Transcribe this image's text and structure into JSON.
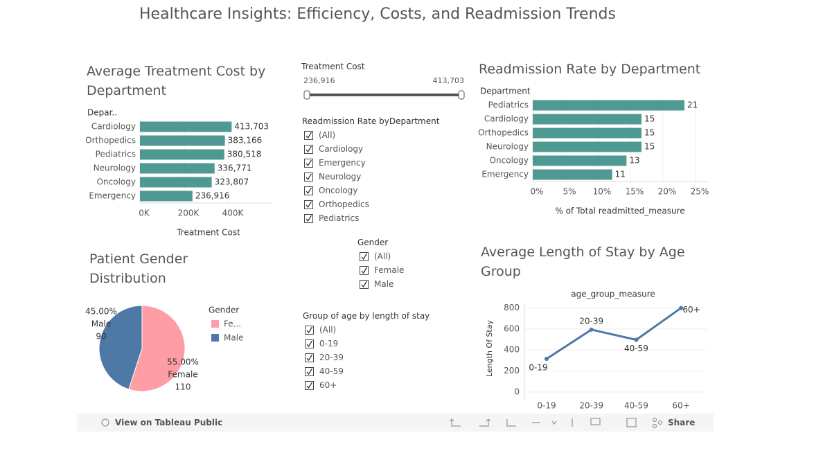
{
  "title": "Healthcare Insights: Efficiency, Costs, and Readmission Trends",
  "chart_data": [
    {
      "type": "hbar",
      "title": "Average Treatment Cost by Department",
      "category_header": "Depar..",
      "xlabel": "Treatment Cost",
      "categories": [
        "Cardiology",
        "Orthopedics",
        "Pediatrics",
        "Neurology",
        "Oncology",
        "Emergency"
      ],
      "values": [
        413703,
        383166,
        380518,
        336771,
        323807,
        236916
      ],
      "value_labels": [
        "413,703",
        "383,166",
        "380,518",
        "336,771",
        "323,807",
        "236,916"
      ],
      "color": "#4e9a92",
      "xlim": [
        0,
        600000
      ],
      "xticks": [
        {
          "value": 0,
          "label": "0K"
        },
        {
          "value": 200000,
          "label": "200K"
        },
        {
          "value": 400000,
          "label": "400K"
        }
      ]
    },
    {
      "type": "hbar",
      "title": "Readmission Rate by Department",
      "category_header": "Department",
      "xlabel": "% of Total readmitted_measure",
      "categories": [
        "Pediatrics",
        "Cardiology",
        "Orthopedics",
        "Neurology",
        "Oncology",
        "Emergency"
      ],
      "values": [
        23.3,
        16.7,
        16.7,
        16.7,
        14.4,
        12.2
      ],
      "counts": [
        21,
        15,
        15,
        15,
        13,
        11
      ],
      "color": "#4e9a92",
      "xlim": [
        0,
        27
      ],
      "xticks": [
        {
          "value": 0,
          "label": "0%"
        },
        {
          "value": 5,
          "label": "5%"
        },
        {
          "value": 10,
          "label": "10%"
        },
        {
          "value": 15,
          "label": "15%"
        },
        {
          "value": 20,
          "label": "20%"
        },
        {
          "value": 25,
          "label": "25%"
        }
      ]
    },
    {
      "type": "pie",
      "title": "Patient Gender Distribution",
      "legend_title": "Gender",
      "categories": [
        "Female",
        "Male"
      ],
      "legend_labels": [
        "Fe...",
        "Male"
      ],
      "values": [
        55,
        45
      ],
      "value_labels": [
        "55.00%",
        "45.00%"
      ],
      "counts": [
        110,
        90
      ],
      "colors": [
        "#ff9da7",
        "#4e79a7"
      ]
    },
    {
      "type": "line",
      "title": "Average Length of Stay by Age Group",
      "header": "age_group_measure",
      "ylabel": "Length Of Stay",
      "categories": [
        "0-19",
        "20-39",
        "40-59",
        "60+"
      ],
      "values": [
        316,
        594,
        497,
        800
      ],
      "color": "#4e79a7",
      "ylim": [
        -80,
        850
      ],
      "yticks": [
        0,
        200,
        400,
        600,
        800
      ],
      "grid": true
    }
  ],
  "slider": {
    "title": "Treatment Cost",
    "min": "236,916",
    "max": "413,703"
  },
  "filters": [
    {
      "title": "Readmission Rate byDepartment",
      "items": [
        "(All)",
        "Cardiology",
        "Emergency",
        "Neurology",
        "Oncology",
        "Orthopedics",
        "Pediatrics"
      ]
    },
    {
      "title": "Gender",
      "items": [
        "(All)",
        "Female",
        "Male"
      ]
    },
    {
      "title": "Group of age by length of stay",
      "items": [
        "(All)",
        "0-19",
        "20-39",
        "40-59",
        "60+"
      ]
    }
  ],
  "toolbar": {
    "view": "View on Tableau Public",
    "share": "Share"
  }
}
